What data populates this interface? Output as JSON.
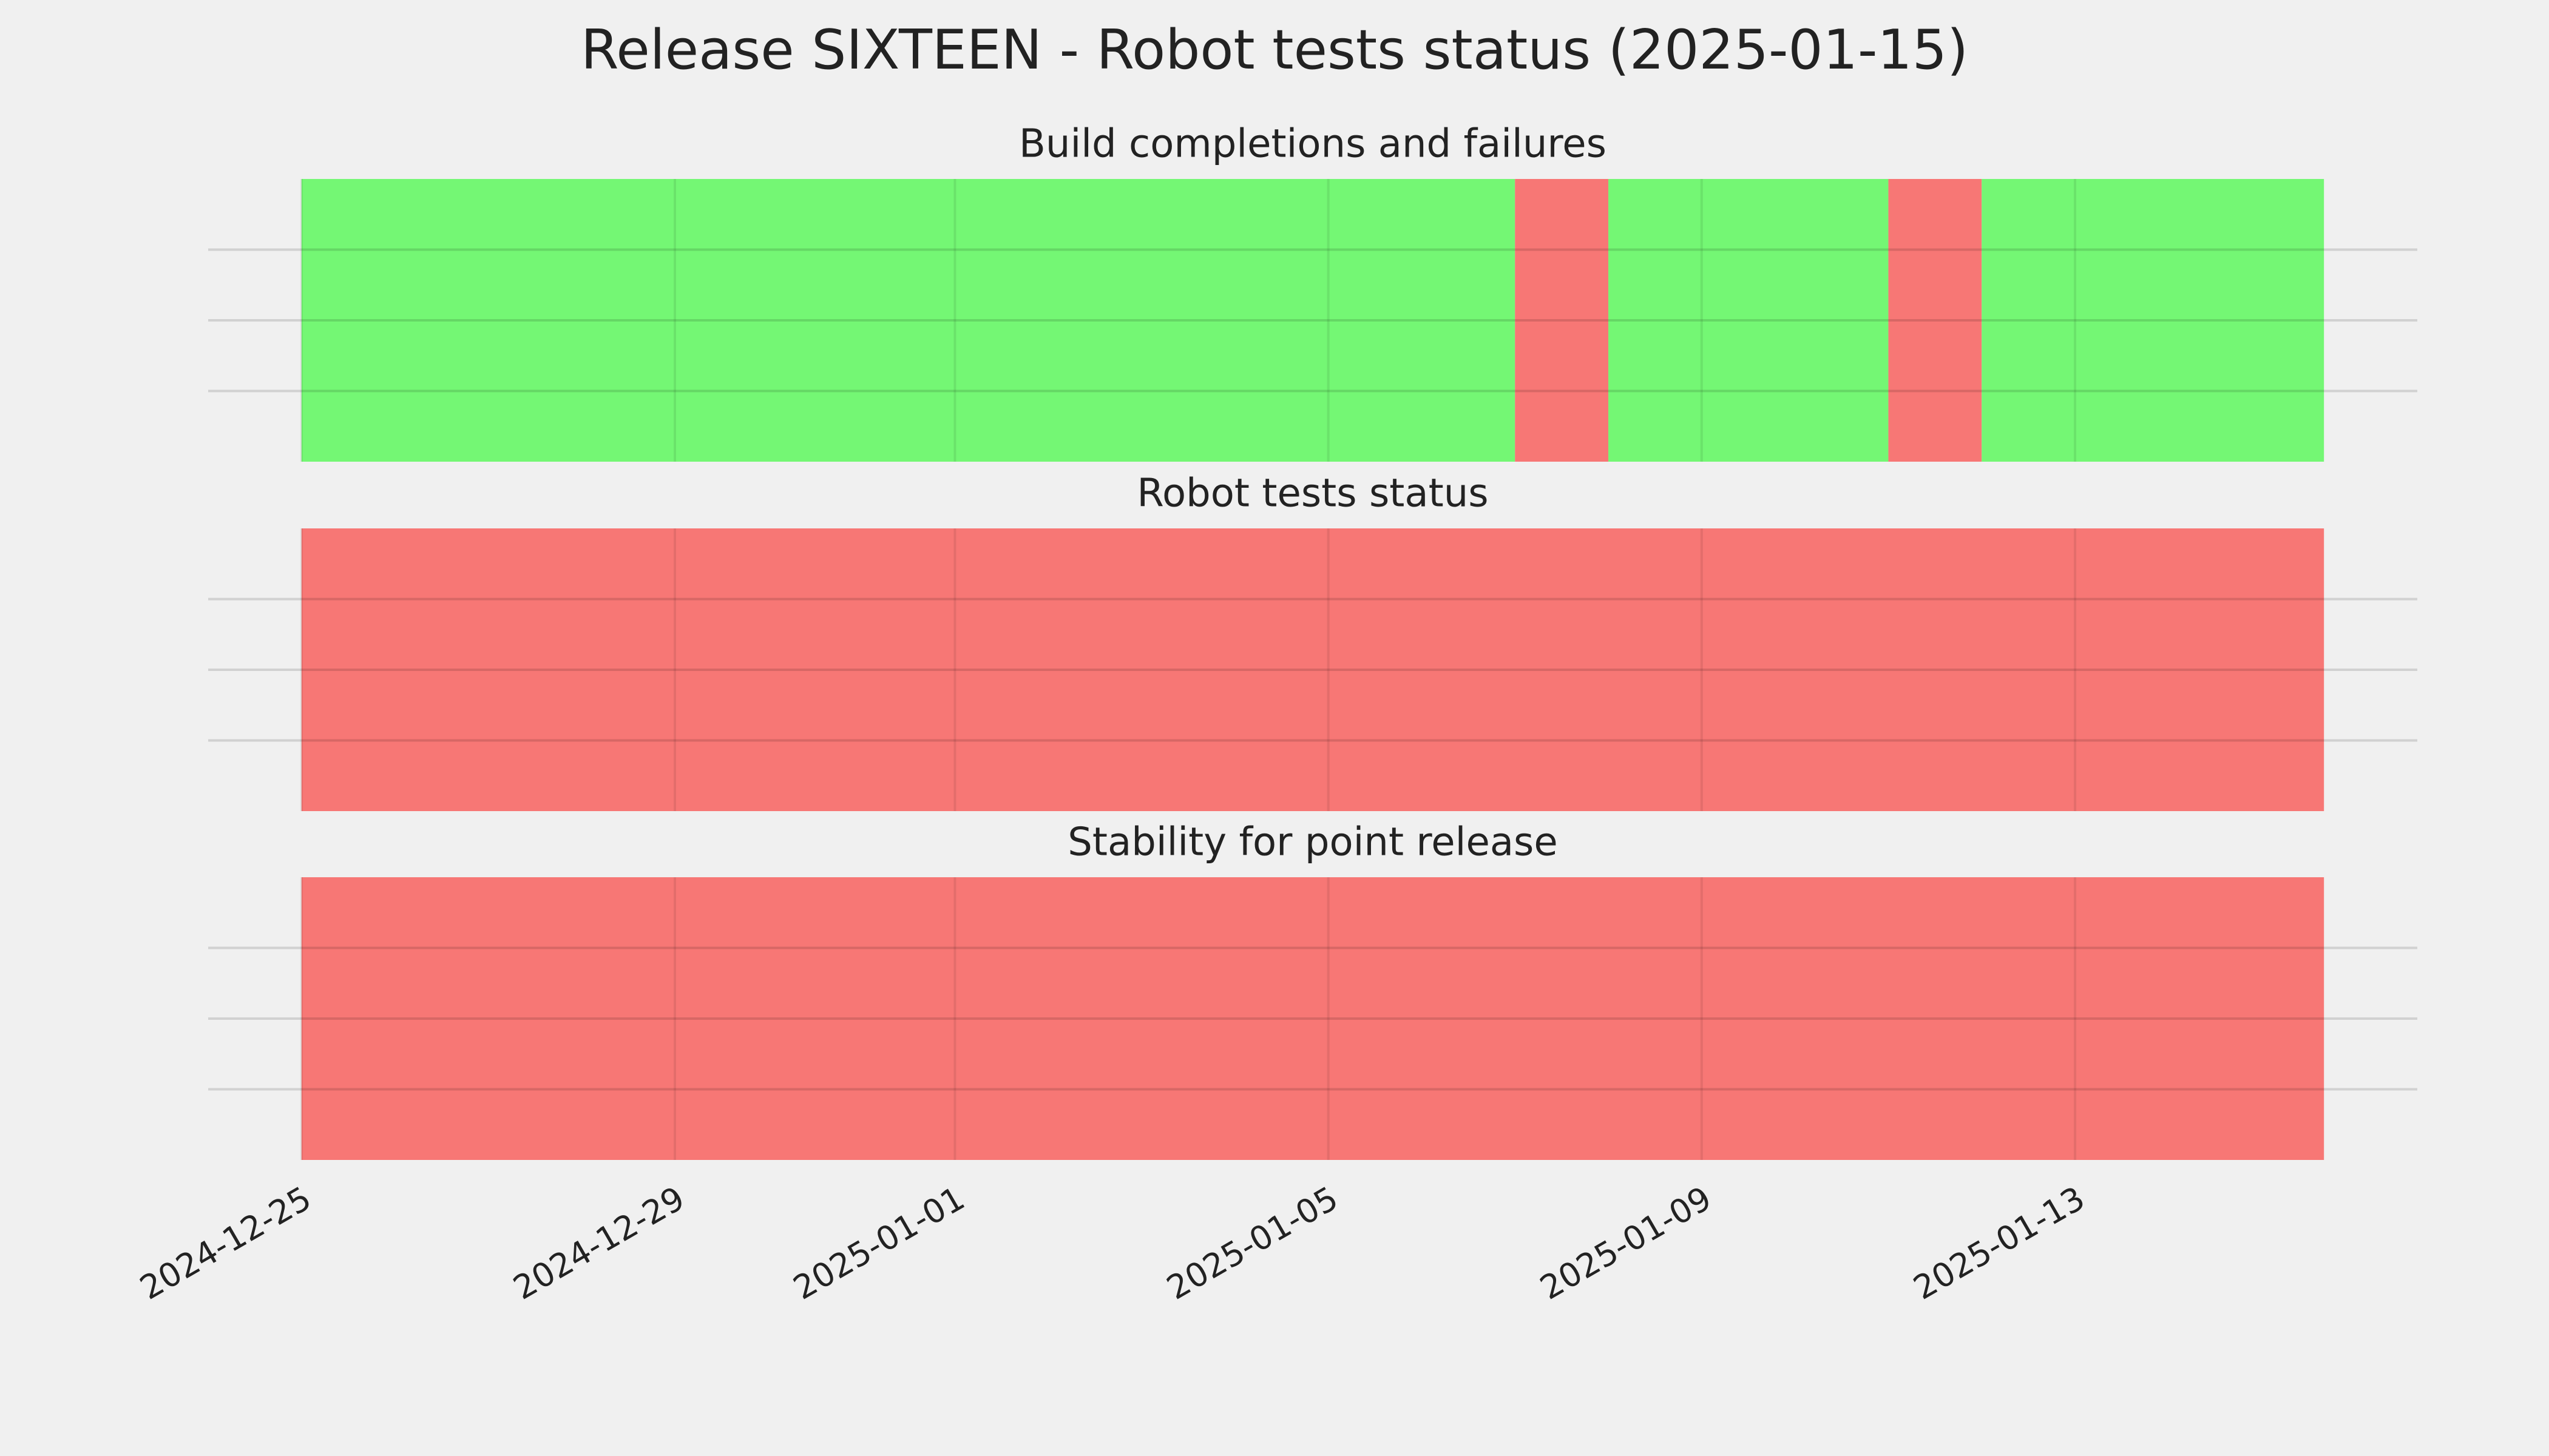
{
  "chart_data": {
    "type": "timeline",
    "title": "Release SIXTEEN - Robot tests status (2025-01-15)",
    "xlim": [
      "2024-12-24",
      "2025-01-16T16:00:00Z"
    ],
    "xticks": [
      "2024-12-25",
      "2024-12-29",
      "2025-01-01",
      "2025-01-05",
      "2025-01-09",
      "2025-01-13"
    ],
    "ylim": [
      0,
      1
    ],
    "yticks": [
      0.25,
      0.5,
      0.75
    ],
    "grid": true,
    "panels": [
      {
        "title": "Build completions and failures",
        "segments": [
          {
            "start": "2024-12-25",
            "end": "2025-01-07",
            "color": "#74f774"
          },
          {
            "start": "2025-01-07",
            "end": "2025-01-08",
            "color": "#f77775"
          },
          {
            "start": "2025-01-08",
            "end": "2025-01-11",
            "color": "#74f774"
          },
          {
            "start": "2025-01-11",
            "end": "2025-01-12",
            "color": "#f77775"
          },
          {
            "start": "2025-01-12",
            "end": "2025-01-15T16:00:00Z",
            "color": "#74f774"
          }
        ]
      },
      {
        "title": "Robot tests status",
        "segments": [
          {
            "start": "2024-12-25",
            "end": "2025-01-15T16:00:00Z",
            "color": "#f77775"
          }
        ]
      },
      {
        "title": "Stability for point release",
        "segments": [
          {
            "start": "2024-12-25",
            "end": "2025-01-15T16:00:00Z",
            "color": "#f77775"
          }
        ]
      }
    ]
  }
}
